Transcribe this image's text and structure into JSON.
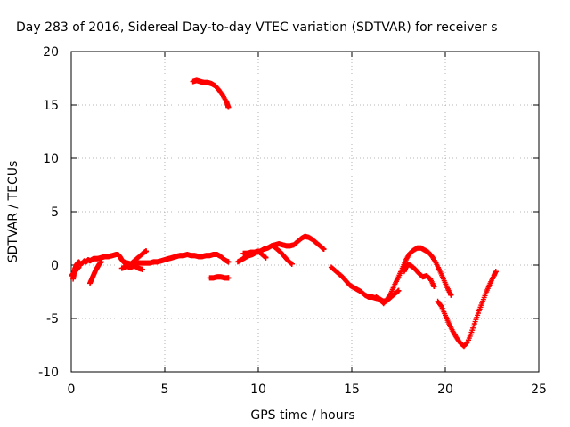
{
  "chart_data": {
    "type": "scatter",
    "title": "Day 283 of 2016, Sidereal Day-to-day VTEC variation (SDTVAR) for receiver s",
    "xlabel": "GPS time / hours",
    "ylabel": "SDTVAR / TECUs",
    "xlim": [
      0,
      25
    ],
    "ylim": [
      -10,
      20
    ],
    "xticks": [
      0,
      5,
      10,
      15,
      20,
      25
    ],
    "yticks": [
      -10,
      -5,
      0,
      5,
      10,
      15,
      20
    ],
    "grid": true,
    "marker": "plus",
    "color": "#ff0000",
    "series": [
      {
        "points": [
          [
            0.1,
            -1.3
          ],
          [
            0.15,
            -0.8
          ],
          [
            0.2,
            -0.3
          ],
          [
            0.3,
            0.1
          ],
          [
            0.4,
            0.3
          ],
          [
            0.5,
            0.1
          ],
          [
            0.6,
            0.2
          ],
          [
            0.7,
            0.4
          ],
          [
            0.8,
            0.3
          ],
          [
            0.9,
            0.5
          ],
          [
            1.0,
            0.4
          ],
          [
            1.1,
            0.5
          ],
          [
            1.2,
            0.6
          ],
          [
            1.4,
            0.6
          ],
          [
            1.6,
            0.7
          ],
          [
            1.8,
            0.8
          ],
          [
            2.0,
            0.8
          ],
          [
            2.2,
            0.9
          ],
          [
            2.4,
            1.0
          ],
          [
            2.5,
            1.0
          ],
          [
            2.6,
            0.8
          ],
          [
            2.7,
            0.5
          ],
          [
            2.8,
            0.3
          ],
          [
            2.9,
            0.1
          ],
          [
            3.0,
            -0.1
          ],
          [
            3.1,
            -0.2
          ],
          [
            3.2,
            -0.2
          ],
          [
            3.3,
            -0.1
          ],
          [
            3.4,
            0.0
          ],
          [
            3.5,
            0.1
          ],
          [
            3.6,
            0.2
          ],
          [
            3.8,
            0.2
          ],
          [
            4.0,
            0.2
          ],
          [
            4.2,
            0.2
          ],
          [
            4.4,
            0.3
          ],
          [
            4.6,
            0.3
          ],
          [
            4.8,
            0.4
          ],
          [
            5.0,
            0.5
          ],
          [
            5.2,
            0.6
          ],
          [
            5.4,
            0.7
          ],
          [
            5.6,
            0.8
          ],
          [
            5.8,
            0.9
          ],
          [
            6.0,
            0.9
          ],
          [
            6.2,
            1.0
          ],
          [
            6.4,
            0.9
          ],
          [
            6.6,
            0.9
          ],
          [
            6.8,
            0.8
          ],
          [
            7.0,
            0.8
          ],
          [
            7.2,
            0.9
          ],
          [
            7.4,
            0.9
          ],
          [
            7.6,
            1.0
          ],
          [
            7.8,
            1.0
          ],
          [
            8.0,
            0.8
          ],
          [
            8.2,
            0.5
          ],
          [
            8.4,
            0.3
          ]
        ]
      },
      {
        "points": [
          [
            0.0,
            -1.0
          ],
          [
            0.1,
            -0.8
          ],
          [
            0.2,
            -0.6
          ],
          [
            0.3,
            -0.4
          ],
          [
            0.4,
            -0.2
          ]
        ]
      },
      {
        "points": [
          [
            1.0,
            -1.7
          ],
          [
            1.1,
            -1.3
          ],
          [
            1.2,
            -0.9
          ],
          [
            1.3,
            -0.5
          ],
          [
            1.4,
            -0.2
          ],
          [
            1.5,
            0.1
          ],
          [
            1.6,
            0.3
          ]
        ]
      },
      {
        "points": [
          [
            2.7,
            -0.3
          ],
          [
            2.9,
            -0.2
          ],
          [
            3.1,
            0.0
          ],
          [
            3.3,
            0.3
          ],
          [
            3.5,
            0.6
          ],
          [
            3.7,
            0.9
          ],
          [
            3.9,
            1.2
          ],
          [
            4.0,
            1.3
          ]
        ]
      },
      {
        "points": [
          [
            2.8,
            0.3
          ],
          [
            3.0,
            0.2
          ],
          [
            3.2,
            0.1
          ],
          [
            3.4,
            -0.1
          ],
          [
            3.6,
            -0.3
          ],
          [
            3.8,
            -0.4
          ]
        ]
      },
      {
        "points": [
          [
            6.5,
            17.2
          ],
          [
            6.7,
            17.3
          ],
          [
            6.9,
            17.2
          ],
          [
            7.1,
            17.1
          ],
          [
            7.3,
            17.1
          ],
          [
            7.5,
            17.0
          ],
          [
            7.7,
            16.8
          ],
          [
            7.9,
            16.4
          ],
          [
            8.1,
            15.9
          ],
          [
            8.3,
            15.3
          ],
          [
            8.4,
            14.8
          ]
        ]
      },
      {
        "points": [
          [
            7.4,
            -1.2
          ],
          [
            7.6,
            -1.2
          ],
          [
            7.8,
            -1.1
          ],
          [
            8.0,
            -1.1
          ],
          [
            8.2,
            -1.2
          ],
          [
            8.4,
            -1.2
          ]
        ]
      },
      {
        "points": [
          [
            8.9,
            0.3
          ],
          [
            9.1,
            0.5
          ],
          [
            9.3,
            0.7
          ],
          [
            9.5,
            0.9
          ],
          [
            9.7,
            1.0
          ],
          [
            9.9,
            1.2
          ],
          [
            10.1,
            1.3
          ],
          [
            10.3,
            1.5
          ],
          [
            10.5,
            1.6
          ],
          [
            10.7,
            1.8
          ],
          [
            10.9,
            1.9
          ],
          [
            11.1,
            2.0
          ],
          [
            11.3,
            1.9
          ],
          [
            11.5,
            1.8
          ],
          [
            11.7,
            1.8
          ],
          [
            11.9,
            1.9
          ],
          [
            12.1,
            2.2
          ],
          [
            12.3,
            2.5
          ],
          [
            12.5,
            2.7
          ],
          [
            12.7,
            2.6
          ],
          [
            12.9,
            2.4
          ],
          [
            13.1,
            2.1
          ],
          [
            13.3,
            1.8
          ],
          [
            13.5,
            1.5
          ]
        ]
      },
      {
        "points": [
          [
            9.2,
            1.1
          ],
          [
            9.4,
            1.1
          ],
          [
            9.6,
            1.2
          ],
          [
            9.8,
            1.2
          ],
          [
            10.0,
            1.3
          ],
          [
            10.2,
            1.0
          ],
          [
            10.4,
            0.7
          ]
        ]
      },
      {
        "points": [
          [
            10.8,
            1.8
          ],
          [
            11.0,
            1.5
          ],
          [
            11.2,
            1.2
          ],
          [
            11.4,
            0.8
          ],
          [
            11.6,
            0.4
          ],
          [
            11.8,
            0.1
          ]
        ]
      },
      {
        "points": [
          [
            13.9,
            -0.2
          ],
          [
            14.1,
            -0.5
          ],
          [
            14.3,
            -0.8
          ],
          [
            14.5,
            -1.1
          ],
          [
            14.7,
            -1.5
          ],
          [
            14.9,
            -1.9
          ],
          [
            15.1,
            -2.1
          ],
          [
            15.3,
            -2.3
          ],
          [
            15.5,
            -2.5
          ],
          [
            15.7,
            -2.8
          ],
          [
            15.9,
            -3.0
          ],
          [
            16.1,
            -3.0
          ],
          [
            16.3,
            -3.1
          ],
          [
            16.5,
            -3.2
          ],
          [
            16.7,
            -3.4
          ],
          [
            16.9,
            -3.3
          ],
          [
            17.1,
            -3.0
          ],
          [
            17.3,
            -2.7
          ],
          [
            17.5,
            -2.4
          ]
        ]
      },
      {
        "points": [
          [
            16.3,
            -3.0
          ],
          [
            16.5,
            -3.2
          ],
          [
            16.7,
            -3.6
          ],
          [
            16.9,
            -3.2
          ],
          [
            17.1,
            -2.6
          ],
          [
            17.3,
            -1.8
          ],
          [
            17.5,
            -1.1
          ],
          [
            17.7,
            -0.3
          ],
          [
            17.9,
            0.5
          ],
          [
            18.1,
            1.1
          ],
          [
            18.3,
            1.4
          ],
          [
            18.5,
            1.6
          ],
          [
            18.7,
            1.6
          ],
          [
            18.9,
            1.4
          ],
          [
            19.1,
            1.2
          ],
          [
            19.3,
            0.8
          ],
          [
            19.5,
            0.2
          ],
          [
            19.7,
            -0.5
          ],
          [
            19.9,
            -1.3
          ],
          [
            20.1,
            -2.1
          ],
          [
            20.3,
            -2.8
          ]
        ]
      },
      {
        "points": [
          [
            17.8,
            -0.6
          ],
          [
            17.9,
            -0.2
          ],
          [
            18.0,
            0.1
          ],
          [
            18.2,
            -0.1
          ],
          [
            18.4,
            -0.4
          ],
          [
            18.6,
            -0.8
          ],
          [
            18.8,
            -1.1
          ],
          [
            19.0,
            -1.0
          ],
          [
            19.2,
            -1.3
          ],
          [
            19.4,
            -2.0
          ]
        ]
      },
      {
        "points": [
          [
            19.6,
            -3.4
          ],
          [
            19.8,
            -3.9
          ],
          [
            20.0,
            -4.7
          ],
          [
            20.2,
            -5.5
          ],
          [
            20.4,
            -6.2
          ],
          [
            20.6,
            -6.8
          ],
          [
            20.8,
            -7.3
          ],
          [
            21.0,
            -7.6
          ],
          [
            21.2,
            -7.2
          ],
          [
            21.4,
            -6.3
          ],
          [
            21.6,
            -5.3
          ],
          [
            21.8,
            -4.3
          ],
          [
            22.0,
            -3.4
          ],
          [
            22.2,
            -2.5
          ],
          [
            22.4,
            -1.7
          ],
          [
            22.6,
            -1.0
          ],
          [
            22.7,
            -0.6
          ]
        ]
      }
    ]
  }
}
